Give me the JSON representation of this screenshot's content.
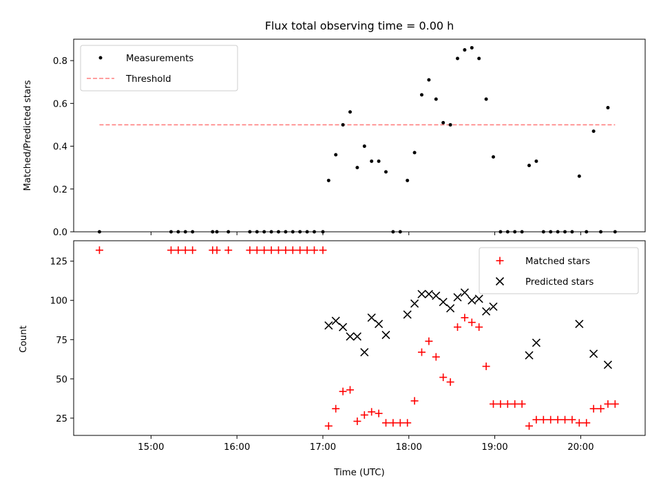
{
  "chart_data": [
    {
      "type": "scatter",
      "title": "Flux total observing time = 0.00 h",
      "xlabel": "",
      "ylabel": "Matched/Predicted stars",
      "ylim": [
        0,
        0.9
      ],
      "yticks": [
        "0.0",
        "0.2",
        "0.4",
        "0.6",
        "0.8"
      ],
      "xlim": [
        "14:06",
        "20:45"
      ],
      "xticks": [
        "15:00",
        "16:00",
        "17:00",
        "18:00",
        "19:00",
        "20:00"
      ],
      "legend_position": "top-left",
      "grid": false,
      "series": [
        {
          "name": "Measurements",
          "kind": "points",
          "color": "#000000",
          "points": [
            [
              "14:24",
              0.0
            ],
            [
              "15:14",
              0.0
            ],
            [
              "15:19",
              0.0
            ],
            [
              "15:24",
              0.0
            ],
            [
              "15:29",
              0.0
            ],
            [
              "15:43",
              0.0
            ],
            [
              "15:46",
              0.0
            ],
            [
              "15:54",
              0.0
            ],
            [
              "16:09",
              0.0
            ],
            [
              "16:14",
              0.0
            ],
            [
              "16:19",
              0.0
            ],
            [
              "16:24",
              0.0
            ],
            [
              "16:29",
              0.0
            ],
            [
              "16:34",
              0.0
            ],
            [
              "16:39",
              0.0
            ],
            [
              "16:44",
              0.0
            ],
            [
              "16:49",
              0.0
            ],
            [
              "16:54",
              0.0
            ],
            [
              "17:00",
              0.0
            ],
            [
              "17:04",
              0.24
            ],
            [
              "17:09",
              0.36
            ],
            [
              "17:14",
              0.5
            ],
            [
              "17:19",
              0.56
            ],
            [
              "17:24",
              0.3
            ],
            [
              "17:29",
              0.4
            ],
            [
              "17:34",
              0.33
            ],
            [
              "17:39",
              0.33
            ],
            [
              "17:44",
              0.28
            ],
            [
              "17:49",
              0.0
            ],
            [
              "17:54",
              0.0
            ],
            [
              "17:59",
              0.24
            ],
            [
              "18:04",
              0.37
            ],
            [
              "18:09",
              0.64
            ],
            [
              "18:14",
              0.71
            ],
            [
              "18:19",
              0.62
            ],
            [
              "18:24",
              0.51
            ],
            [
              "18:29",
              0.5
            ],
            [
              "18:34",
              0.81
            ],
            [
              "18:39",
              0.85
            ],
            [
              "18:44",
              0.86
            ],
            [
              "18:49",
              0.81
            ],
            [
              "18:54",
              0.62
            ],
            [
              "18:59",
              0.35
            ],
            [
              "19:04",
              0.0
            ],
            [
              "19:09",
              0.0
            ],
            [
              "19:14",
              0.0
            ],
            [
              "19:19",
              0.0
            ],
            [
              "19:24",
              0.31
            ],
            [
              "19:29",
              0.33
            ],
            [
              "19:34",
              0.0
            ],
            [
              "19:39",
              0.0
            ],
            [
              "19:44",
              0.0
            ],
            [
              "19:49",
              0.0
            ],
            [
              "19:54",
              0.0
            ],
            [
              "19:59",
              0.26
            ],
            [
              "20:04",
              0.0
            ],
            [
              "20:09",
              0.47
            ],
            [
              "20:14",
              0.0
            ],
            [
              "20:19",
              0.58
            ],
            [
              "20:24",
              0.0
            ]
          ]
        },
        {
          "name": "Threshold",
          "kind": "dashed-line",
          "color": "#ff7f7f",
          "points": [
            [
              "14:24",
              0.5
            ],
            [
              "20:24",
              0.5
            ]
          ]
        }
      ]
    },
    {
      "type": "scatter",
      "title": "",
      "xlabel": "Time (UTC)",
      "ylabel": "Count",
      "ylim": [
        14,
        138
      ],
      "yticks": [
        "25",
        "50",
        "75",
        "100",
        "125"
      ],
      "xlim": [
        "14:06",
        "20:45"
      ],
      "xticks": [
        "15:00",
        "16:00",
        "17:00",
        "18:00",
        "19:00",
        "20:00"
      ],
      "legend_position": "top-right",
      "grid": false,
      "series": [
        {
          "name": "Matched stars",
          "marker": "plus",
          "color": "#ff0000",
          "points": [
            [
              "14:24",
              132
            ],
            [
              "15:14",
              132
            ],
            [
              "15:19",
              132
            ],
            [
              "15:24",
              132
            ],
            [
              "15:29",
              132
            ],
            [
              "15:43",
              132
            ],
            [
              "15:46",
              132
            ],
            [
              "15:54",
              132
            ],
            [
              "16:09",
              132
            ],
            [
              "16:14",
              132
            ],
            [
              "16:19",
              132
            ],
            [
              "16:24",
              132
            ],
            [
              "16:29",
              132
            ],
            [
              "16:34",
              132
            ],
            [
              "16:39",
              132
            ],
            [
              "16:44",
              132
            ],
            [
              "16:49",
              132
            ],
            [
              "16:54",
              132
            ],
            [
              "17:00",
              132
            ],
            [
              "17:04",
              20
            ],
            [
              "17:09",
              31
            ],
            [
              "17:14",
              42
            ],
            [
              "17:19",
              43
            ],
            [
              "17:24",
              23
            ],
            [
              "17:29",
              27
            ],
            [
              "17:34",
              29
            ],
            [
              "17:39",
              28
            ],
            [
              "17:44",
              22
            ],
            [
              "17:49",
              22
            ],
            [
              "17:54",
              22
            ],
            [
              "17:59",
              22
            ],
            [
              "18:04",
              36
            ],
            [
              "18:09",
              67
            ],
            [
              "18:14",
              74
            ],
            [
              "18:19",
              64
            ],
            [
              "18:24",
              51
            ],
            [
              "18:29",
              48
            ],
            [
              "18:34",
              83
            ],
            [
              "18:39",
              89
            ],
            [
              "18:44",
              86
            ],
            [
              "18:49",
              83
            ],
            [
              "18:54",
              58
            ],
            [
              "18:59",
              34
            ],
            [
              "19:04",
              34
            ],
            [
              "19:09",
              34
            ],
            [
              "19:14",
              34
            ],
            [
              "19:19",
              34
            ],
            [
              "19:24",
              20
            ],
            [
              "19:29",
              24
            ],
            [
              "19:34",
              24
            ],
            [
              "19:39",
              24
            ],
            [
              "19:44",
              24
            ],
            [
              "19:49",
              24
            ],
            [
              "19:54",
              24
            ],
            [
              "19:59",
              22
            ],
            [
              "20:04",
              22
            ],
            [
              "20:09",
              31
            ],
            [
              "20:14",
              31
            ],
            [
              "20:19",
              34
            ],
            [
              "20:24",
              34
            ]
          ]
        },
        {
          "name": "Predicted stars",
          "marker": "x",
          "color": "#000000",
          "points": [
            [
              "17:04",
              84
            ],
            [
              "17:09",
              87
            ],
            [
              "17:14",
              83
            ],
            [
              "17:19",
              77
            ],
            [
              "17:24",
              77
            ],
            [
              "17:29",
              67
            ],
            [
              "17:34",
              89
            ],
            [
              "17:39",
              85
            ],
            [
              "17:44",
              78
            ],
            [
              "17:59",
              91
            ],
            [
              "18:04",
              98
            ],
            [
              "18:09",
              104
            ],
            [
              "18:14",
              104
            ],
            [
              "18:19",
              103
            ],
            [
              "18:24",
              99
            ],
            [
              "18:29",
              95
            ],
            [
              "18:34",
              102
            ],
            [
              "18:39",
              105
            ],
            [
              "18:44",
              100
            ],
            [
              "18:49",
              101
            ],
            [
              "18:54",
              93
            ],
            [
              "18:59",
              96
            ],
            [
              "19:24",
              65
            ],
            [
              "19:29",
              73
            ],
            [
              "19:59",
              85
            ],
            [
              "20:09",
              66
            ],
            [
              "20:19",
              59
            ]
          ]
        }
      ]
    }
  ]
}
